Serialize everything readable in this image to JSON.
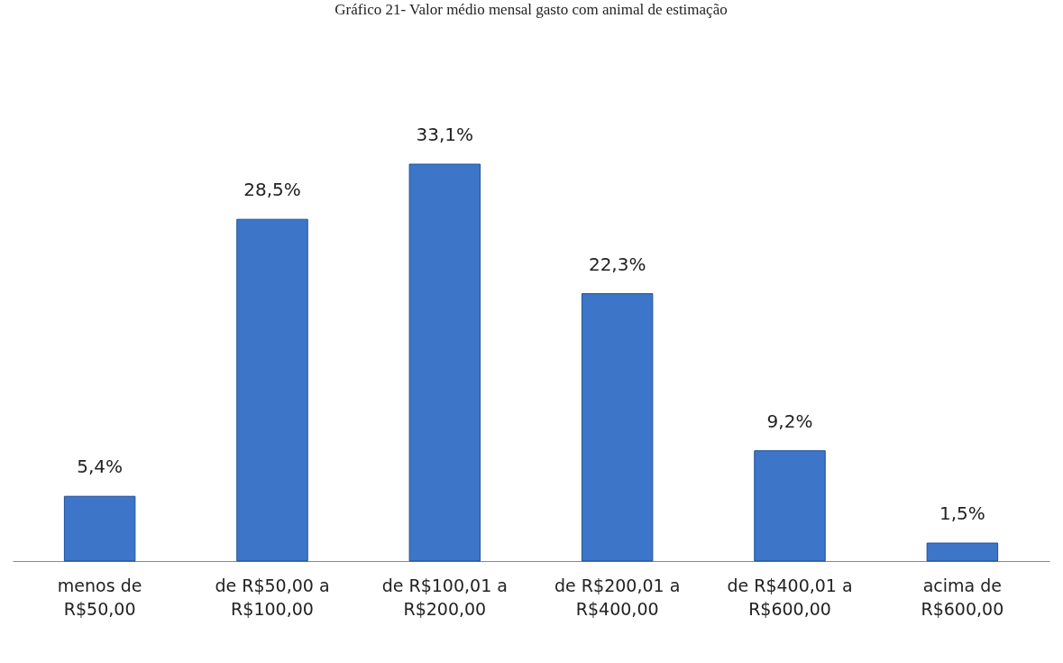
{
  "chart_data": {
    "type": "bar",
    "title": "Gráfico 21- Valor médio mensal gasto com animal de estimação",
    "categories": [
      "menos de R$50,00",
      "de R$50,00 a R$100,00",
      "de R$100,01 a R$200,00",
      "de R$200,01 a R$400,00",
      "de R$400,01 a R$600,00",
      "acima de R$600,00"
    ],
    "values": [
      5.4,
      28.5,
      33.1,
      22.3,
      9.2,
      1.5
    ],
    "value_labels": [
      "5,4%",
      "28,5%",
      "33,1%",
      "22,3%",
      "9,2%",
      "1,5%"
    ],
    "color": "#3d75c8",
    "grid": false
  }
}
